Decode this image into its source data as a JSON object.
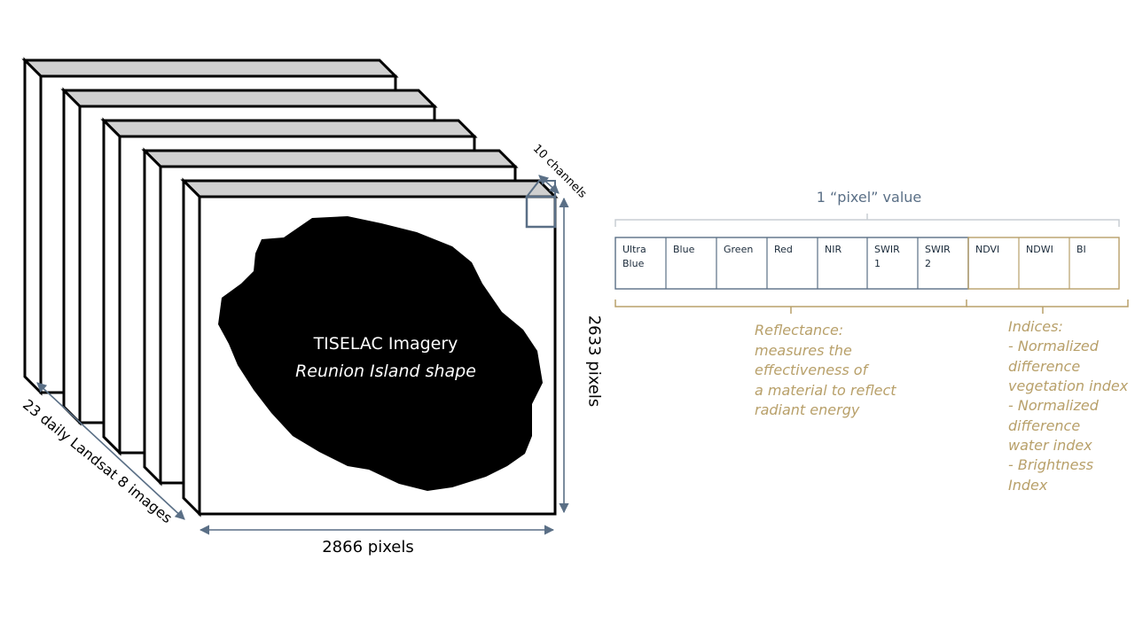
{
  "image_stack": {
    "title": "TISELAC Imagery",
    "subtitle": "Reunion Island shape",
    "width_label": "2866 pixels",
    "height_label": "2633 pixels",
    "depth_label": "23 daily Landsat 8 images",
    "channels_label": "10 channels"
  },
  "pixel_vector": {
    "label": "1 “pixel” value",
    "channels": [
      {
        "label": "Ultra\nBlue",
        "group": "reflectance"
      },
      {
        "label": "Blue",
        "group": "reflectance"
      },
      {
        "label": "Green",
        "group": "reflectance"
      },
      {
        "label": "Red",
        "group": "reflectance"
      },
      {
        "label": "NIR",
        "group": "reflectance"
      },
      {
        "label": "SWIR\n1",
        "group": "reflectance"
      },
      {
        "label": "SWIR\n2",
        "group": "reflectance"
      },
      {
        "label": "NDVI",
        "group": "indices"
      },
      {
        "label": "NDWI",
        "group": "indices"
      },
      {
        "label": "BI",
        "group": "indices"
      }
    ]
  },
  "reflectance": {
    "text": "Reflectance:\nmeasures the\neffectiveness of\na material to reflect\nradiant energy"
  },
  "indices": {
    "title": "Indices:",
    "items": [
      " - Normalized\ndifference\nvegetation index",
      "  - Normalized\ndifference\nwater index",
      "-     Brightness\nIndex"
    ]
  },
  "colors": {
    "reflectance_accent": "#5a6f86",
    "indices_accent": "#b8a06a",
    "frame_top": "#d0d0d0",
    "island": "#000000"
  }
}
